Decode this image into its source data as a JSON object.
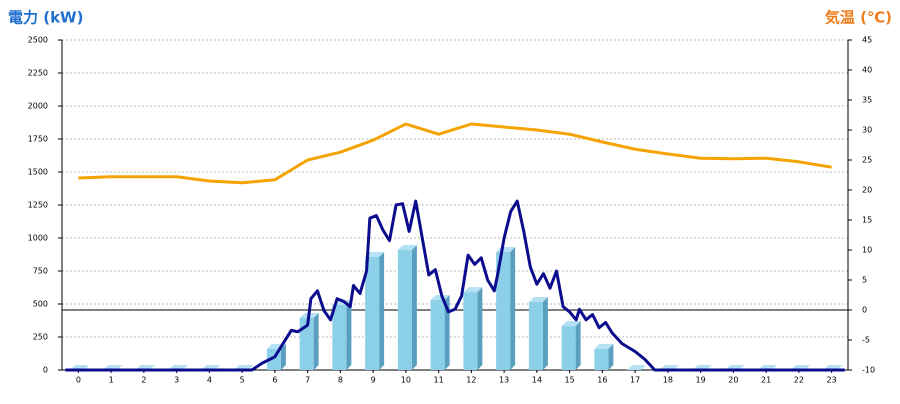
{
  "chart_data": {
    "type": "bar-line",
    "y_label": "電力 (kW)",
    "y2_label": "気温 (℃)",
    "categories": [
      "0",
      "1",
      "2",
      "3",
      "4",
      "5",
      "6",
      "7",
      "8",
      "9",
      "10",
      "11",
      "12",
      "13",
      "14",
      "15",
      "16",
      "17",
      "18",
      "19",
      "20",
      "21",
      "22",
      "23"
    ],
    "ylim": [
      0,
      2500
    ],
    "yticks": [
      0,
      250,
      500,
      750,
      1000,
      1250,
      1500,
      1750,
      2000,
      2250,
      2500
    ],
    "y2lim": [
      -10,
      45
    ],
    "y2ticks": [
      -10,
      -5,
      0,
      5,
      10,
      15,
      20,
      25,
      30,
      35,
      40,
      45
    ],
    "grid": true,
    "series": [
      {
        "type": "bar",
        "color": "#8ccfe8",
        "values": [
          0,
          0,
          0,
          0,
          0,
          0,
          160,
          394,
          492,
          856,
          909,
          530,
          590,
          894,
          515,
          333,
          160,
          0,
          0,
          0,
          0,
          0,
          0,
          0
        ]
      },
      {
        "type": "line",
        "color": "#0c0c8e",
        "x": [
          -0.4,
          5.3,
          5.6,
          6,
          6.3,
          6.5,
          6.7,
          7,
          7.1,
          7.3,
          7.5,
          7.7,
          7.9,
          8.1,
          8.3,
          8.4,
          8.6,
          8.8,
          8.9,
          9.1,
          9.3,
          9.5,
          9.7,
          9.9,
          10.1,
          10.3,
          10.5,
          10.7,
          10.9,
          11.1,
          11.3,
          11.5,
          11.7,
          11.9,
          12.1,
          12.3,
          12.5,
          12.7,
          12.8,
          13,
          13.2,
          13.4,
          13.6,
          13.8,
          14,
          14.2,
          14.4,
          14.6,
          14.8,
          15,
          15.2,
          15.3,
          15.5,
          15.7,
          15.9,
          16.1,
          16.3,
          16.6,
          17,
          17.3,
          17.6,
          23.4
        ],
        "values": [
          0,
          0,
          50,
          100,
          220,
          300,
          290,
          340,
          540,
          600,
          450,
          380,
          540,
          520,
          480,
          640,
          580,
          750,
          1150,
          1170,
          1060,
          980,
          1250,
          1260,
          1050,
          1280,
          1000,
          720,
          760,
          560,
          440,
          460,
          560,
          870,
          800,
          850,
          680,
          600,
          720,
          1000,
          1200,
          1280,
          1050,
          780,
          650,
          730,
          620,
          750,
          480,
          440,
          380,
          460,
          380,
          420,
          320,
          360,
          280,
          200,
          140,
          80,
          0,
          0
        ]
      },
      {
        "type": "line",
        "axis": "y2",
        "color": "#f5a300",
        "values": [
          22,
          22.2,
          22.2,
          22.2,
          21.5,
          21.2,
          21.7,
          25,
          26.3,
          28.3,
          31,
          29.3,
          31,
          30.5,
          30,
          29.3,
          28,
          26.8,
          26,
          25.3,
          25.2,
          25.3,
          24.7,
          23.8
        ]
      }
    ]
  }
}
